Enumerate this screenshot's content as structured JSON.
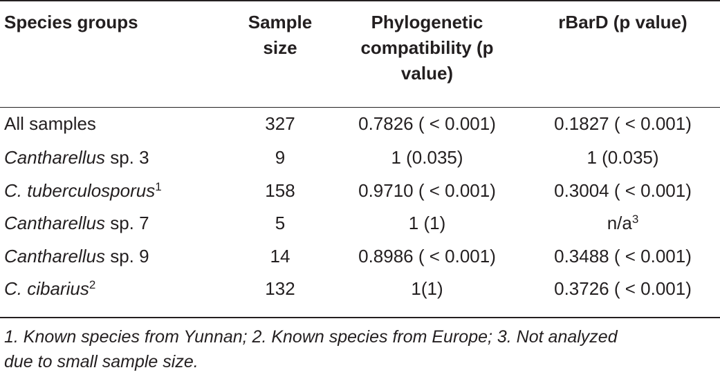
{
  "table": {
    "headers": {
      "col1": "Species groups",
      "col2_line1": "Sample",
      "col2_line2": "size",
      "col3_line1": "Phylogenetic",
      "col3_line2": "compatibility (p",
      "col3_line3": "value)",
      "col4": "rBarD (p value)"
    },
    "rows": [
      {
        "name_italic": "",
        "name_plain": "All samples",
        "sup": "",
        "sample_size": "327",
        "phylo": "0.7826 ( < 0.001)",
        "rbard_text": "0.1827 ( < 0.001)",
        "rbard_sup": ""
      },
      {
        "name_italic": "Cantharellus",
        "name_plain": " sp. 3",
        "sup": "",
        "sample_size": "9",
        "phylo": "1 (0.035)",
        "rbard_text": "1 (0.035)",
        "rbard_sup": ""
      },
      {
        "name_italic": "C. tuberculosporus",
        "name_plain": "",
        "sup": "1",
        "sample_size": "158",
        "phylo": "0.9710 ( < 0.001)",
        "rbard_text": "0.3004 ( < 0.001)",
        "rbard_sup": ""
      },
      {
        "name_italic": "Cantharellus",
        "name_plain": " sp. 7",
        "sup": "",
        "sample_size": "5",
        "phylo": "1 (1)",
        "rbard_text": "n/a",
        "rbard_sup": "3"
      },
      {
        "name_italic": "Cantharellus",
        "name_plain": " sp. 9",
        "sup": "",
        "sample_size": "14",
        "phylo": "0.8986 ( < 0.001)",
        "rbard_text": "0.3488 ( < 0.001)",
        "rbard_sup": ""
      },
      {
        "name_italic": "C. cibarius",
        "name_plain": "",
        "sup": "2",
        "sample_size": "132",
        "phylo": "1(1)",
        "rbard_text": "0.3726 ( < 0.001)",
        "rbard_sup": ""
      }
    ]
  },
  "footnote": {
    "line1": "1. Known species from Yunnan; 2. Known species from Europe; 3. Not analyzed",
    "line2": "due to small sample size."
  }
}
